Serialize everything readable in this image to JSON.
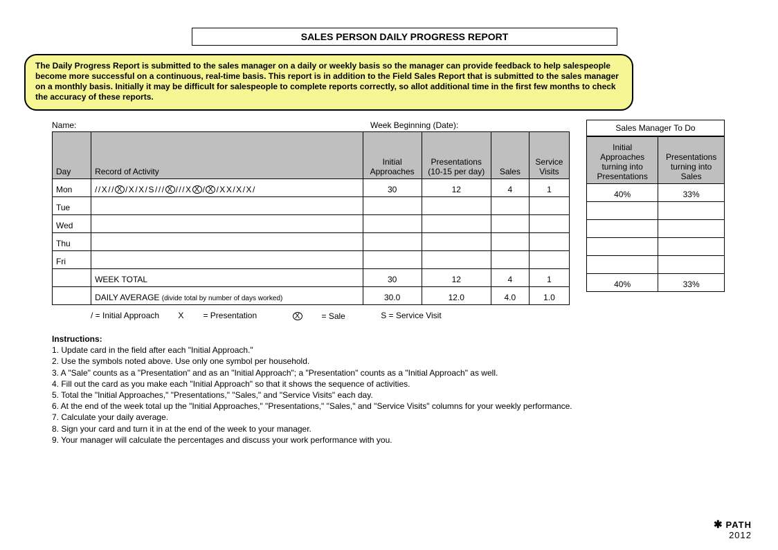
{
  "title": "SALES PERSON DAILY PROGRESS REPORT",
  "callout": "The Daily Progress Report is submitted to the sales manager on a daily or weekly basis so the manager can provide feedback to help salespeople become more successful on a continuous, real-time basis. This report is in addition to the Field Sales Report that is submitted to the sales manager on a monthly basis. Initially it may be difficult for salespeople to complete reports correctly, so allot additional time in the first few months to check the accuracy of these reports.",
  "fields": {
    "name_label": "Name:",
    "week_label": "Week Beginning (Date):"
  },
  "main_table": {
    "headers": {
      "day": "Day",
      "record": "Record of Activity",
      "initial": "Initial Approaches",
      "pres": "Presentations (10-15 per day)",
      "sales": "Sales",
      "service": "Service Visits"
    },
    "rows": [
      {
        "day": "Mon",
        "initial": "30",
        "pres": "12",
        "sales": "4",
        "service": "1"
      },
      {
        "day": "Tue",
        "initial": "",
        "pres": "",
        "sales": "",
        "service": ""
      },
      {
        "day": "Wed",
        "initial": "",
        "pres": "",
        "sales": "",
        "service": ""
      },
      {
        "day": "Thu",
        "initial": "",
        "pres": "",
        "sales": "",
        "service": ""
      },
      {
        "day": "Fri",
        "initial": "",
        "pres": "",
        "sales": "",
        "service": ""
      }
    ],
    "week_total": {
      "label": "WEEK TOTAL",
      "initial": "30",
      "pres": "12",
      "sales": "4",
      "service": "1"
    },
    "daily_avg": {
      "label": "DAILY AVERAGE",
      "note": "(divide total by number of days worked)",
      "initial": "30.0",
      "pres": "12.0",
      "sales": "4.0",
      "service": "1.0"
    }
  },
  "activity_tokens": [
    "/",
    "/",
    "X",
    "/",
    "/",
    "CX",
    "/",
    "X",
    "/",
    "X",
    "/",
    "S",
    "/",
    "/",
    "/",
    "CX",
    "/",
    "/",
    "/",
    "X",
    "CX",
    "/",
    "CX",
    "/",
    "X",
    "X",
    "/",
    "X",
    "/",
    "X",
    "/"
  ],
  "todo": {
    "title": "Sales Manager To Do",
    "headers": {
      "h1": "Initial Approaches turning into Presentations",
      "h2": "Presentations turning into Sales"
    },
    "rows": [
      {
        "c1": "40%",
        "c2": "33%"
      },
      {
        "c1": "",
        "c2": ""
      },
      {
        "c1": "",
        "c2": ""
      },
      {
        "c1": "",
        "c2": ""
      },
      {
        "c1": "",
        "c2": ""
      }
    ],
    "total": {
      "c1": "40%",
      "c2": "33%"
    }
  },
  "legend": {
    "l1": "/ = Initial Approach",
    "l2_pre": "X",
    "l2_post": " = Presentation",
    "l3_post": " = Sale",
    "l4": "S = Service Visit"
  },
  "instructions": {
    "head": "Instructions:",
    "items": [
      "1. Update card in the field after each \"Initial Approach.\"",
      "2. Use the symbols noted above. Use only one symbol per household.",
      "3. A \"Sale\" counts as a \"Presentation\" and as an \"Initial Approach\"; a \"Presentation\" counts as a \"Initial Approach\" as well.",
      "4. Fill out the card as you make each \"Initial Approach\" so that it shows the sequence of activities.",
      "5. Total the \"Initial Approaches,\" \"Presentations,\" \"Sales,\" and \"Service Visits\" each day.",
      "6. At the end of the week total up the \"Initial Approaches,\" \"Presentations,\" \"Sales,\" and \"Service Visits\" columns for your weekly performance.",
      "7. Calculate your daily average.",
      "8. Sign your card and turn it in at the end of the week to your manager.",
      "9. Your manager will calculate the percentages and discuss your work performance with you."
    ]
  },
  "footer": {
    "brand": "PATH",
    "year": "2012"
  }
}
